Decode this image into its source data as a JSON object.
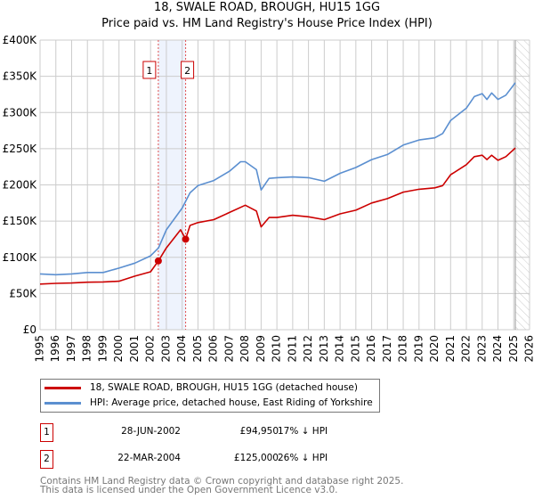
{
  "chart_data": {
    "type": "line",
    "title": "18, SWALE ROAD, BROUGH, HU15 1GG",
    "subtitle": "Price paid vs. HM Land Registry's House Price Index (HPI)",
    "xlabel": "",
    "ylabel": "",
    "xlim": [
      1995,
      2026
    ],
    "ylim": [
      0,
      400000
    ],
    "x_ticks": [
      "1995",
      "1996",
      "1997",
      "1998",
      "1999",
      "2000",
      "2001",
      "2002",
      "2003",
      "2004",
      "2005",
      "2006",
      "2007",
      "2008",
      "2009",
      "2010",
      "2011",
      "2012",
      "2013",
      "2014",
      "2015",
      "2016",
      "2017",
      "2018",
      "2019",
      "2020",
      "2021",
      "2022",
      "2023",
      "2024",
      "2025",
      "2026"
    ],
    "y_ticks": [
      {
        "value": 0,
        "label": "£0"
      },
      {
        "value": 50000,
        "label": "£50K"
      },
      {
        "value": 100000,
        "label": "£100K"
      },
      {
        "value": 150000,
        "label": "£150K"
      },
      {
        "value": 200000,
        "label": "£200K"
      },
      {
        "value": 250000,
        "label": "£250K"
      },
      {
        "value": 300000,
        "label": "£300K"
      },
      {
        "value": 350000,
        "label": "£350K"
      },
      {
        "value": 400000,
        "label": "£400K"
      }
    ],
    "grid": true,
    "future_hatch_from": 2025.1,
    "series": [
      {
        "name": "18, SWALE ROAD, BROUGH, HU15 1GG (detached house)",
        "color": "#cc0000",
        "x": [
          1995,
          1996,
          1997,
          1998,
          1999,
          2000,
          2001,
          2002,
          2002.49,
          2003,
          2003.9,
          2004.22,
          2004.5,
          2005,
          2006,
          2007,
          2008,
          2008.7,
          2009,
          2009.5,
          2010,
          2011,
          2012,
          2013,
          2014,
          2015,
          2016,
          2017,
          2018,
          2019,
          2020,
          2020.5,
          2021,
          2022,
          2022.5,
          2023,
          2023.3,
          2023.6,
          2024,
          2024.5,
          2025.1
        ],
        "y": [
          63000,
          64000,
          64500,
          65600,
          66000,
          67000,
          74000,
          80000,
          94950,
          113000,
          138000,
          125000,
          144000,
          148000,
          152000,
          162000,
          172000,
          164000,
          142000,
          155000,
          155000,
          158000,
          156000,
          152000,
          160000,
          165000,
          175000,
          181000,
          190000,
          194000,
          196000,
          199000,
          214000,
          228000,
          239000,
          241000,
          235000,
          241000,
          234000,
          239000,
          251000
        ]
      },
      {
        "name": "HPI: Average price, detached house, East Riding of Yorkshire",
        "color": "#5b8fd0",
        "x": [
          1995,
          1996,
          1997,
          1998,
          1999,
          2000,
          2001,
          2002,
          2002.5,
          2003,
          2004,
          2004.5,
          2005,
          2006,
          2007,
          2007.7,
          2008,
          2008.7,
          2009,
          2009.5,
          2010,
          2011,
          2012,
          2013,
          2014,
          2015,
          2016,
          2017,
          2018,
          2019,
          2020,
          2020.5,
          2021,
          2022,
          2022.5,
          2023,
          2023.3,
          2023.6,
          2024,
          2024.5,
          2025.1
        ],
        "y": [
          77000,
          76000,
          77000,
          79000,
          79000,
          85000,
          92000,
          102000,
          113000,
          138000,
          168000,
          189000,
          199000,
          206000,
          219000,
          232000,
          232000,
          221000,
          193000,
          209000,
          210000,
          211000,
          210000,
          205000,
          216000,
          224000,
          235000,
          242000,
          255000,
          262000,
          265000,
          271000,
          289000,
          306000,
          322000,
          326000,
          318000,
          327000,
          318000,
          324000,
          341000
        ]
      }
    ],
    "annotations": [
      {
        "label": "1",
        "x": 2002.49,
        "value": 94950
      },
      {
        "label": "2",
        "x": 2004.22,
        "value": 125000
      }
    ]
  },
  "legend": {
    "property": "18, SWALE ROAD, BROUGH, HU15 1GG (detached house)",
    "hpi": "HPI: Average price, detached house, East Riding of Yorkshire"
  },
  "sales": [
    {
      "num": "1",
      "date": "28-JUN-2002",
      "price": "£94,950",
      "hpi": "17% ↓ HPI"
    },
    {
      "num": "2",
      "date": "22-MAR-2004",
      "price": "£125,000",
      "hpi": "26% ↓ HPI"
    }
  ],
  "footer": {
    "line1": "Contains HM Land Registry data © Crown copyright and database right 2025.",
    "line2": "This data is licensed under the Open Government Licence v3.0."
  }
}
